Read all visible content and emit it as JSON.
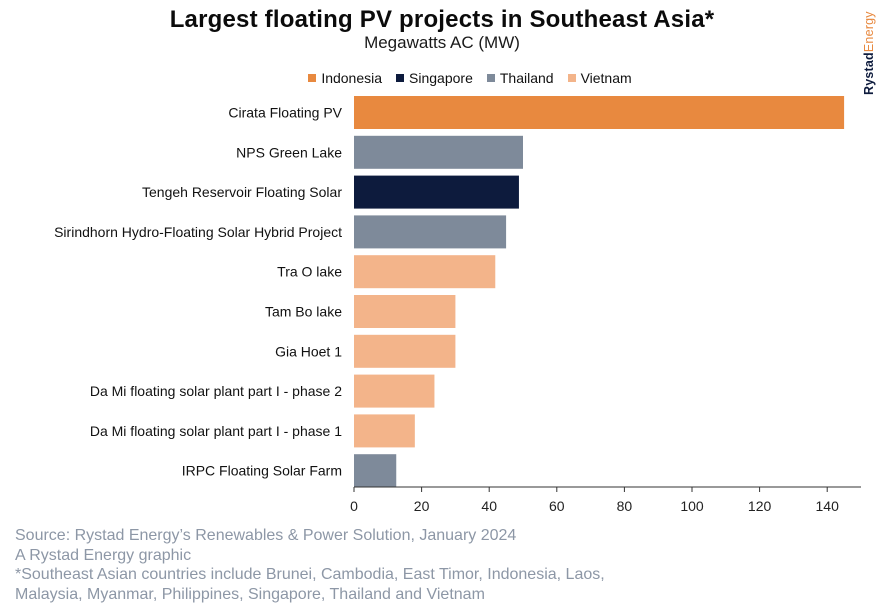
{
  "header": {
    "title": "Largest floating PV projects in Southeast Asia*",
    "subtitle": "Megawatts AC (MW)"
  },
  "brand": {
    "part1": "Rystad",
    "part2": "Energy"
  },
  "legend": [
    {
      "name": "Indonesia",
      "color": "#e8893f"
    },
    {
      "name": "Singapore",
      "color": "#0d1b3d"
    },
    {
      "name": "Thailand",
      "color": "#7e8a9a"
    },
    {
      "name": "Vietnam",
      "color": "#f3b48a"
    }
  ],
  "chart_data": {
    "type": "bar",
    "orientation": "horizontal",
    "title": "Largest floating PV projects in Southeast Asia*",
    "subtitle": "Megawatts AC (MW)",
    "xlabel": "",
    "ylabel": "",
    "xlim": [
      0,
      150
    ],
    "xticks": [
      0,
      20,
      40,
      60,
      80,
      100,
      120,
      140
    ],
    "grid": false,
    "legend_position": "top",
    "categories": [
      "Cirata Floating PV",
      "NPS Green Lake",
      "Tengeh Reservoir Floating Solar",
      "Sirindhorn Hydro-Floating Solar Hybrid Project",
      "Tra O lake",
      "Tam Bo lake",
      "Gia Hoet 1",
      "Da Mi floating solar plant part I - phase 2",
      "Da Mi floating solar plant part I - phase 1",
      "IRPC Floating Solar Farm"
    ],
    "values": [
      145,
      50,
      48.8,
      45,
      41.8,
      30,
      30,
      23.8,
      18,
      12.5
    ],
    "country": [
      "Indonesia",
      "Thailand",
      "Singapore",
      "Thailand",
      "Vietnam",
      "Vietnam",
      "Vietnam",
      "Vietnam",
      "Vietnam",
      "Thailand"
    ]
  },
  "footer": {
    "source": "Source: Rystad Energy’s Renewables & Power Solution, January 2024",
    "credit": "A Rystad Energy graphic",
    "note_line1": "*Southeast Asian countries include Brunei, Cambodia, East Timor, Indonesia, Laos,",
    "note_line2": "Malaysia, Myanmar, Philippines, Singapore, Thailand and Vietnam"
  }
}
